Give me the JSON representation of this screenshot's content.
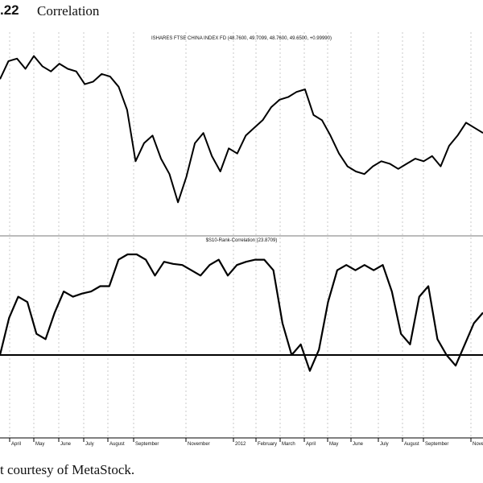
{
  "figure": {
    "number": ".22",
    "title": "Correlation",
    "caption": "t courtesy of MetaStock."
  },
  "chart_data": [
    {
      "type": "line",
      "title": "ISHARES FTSE CHINA INDEX FD (48.7600, 49.7099, 48.7600, 49.6500, +0.99990)",
      "series": [
        {
          "values": [
            44.0,
            47.5,
            48.0,
            46.0,
            48.5,
            46.5,
            45.5,
            47.0,
            46.0,
            45.5,
            43.0,
            43.5,
            45.0,
            44.5,
            42.5,
            38.0,
            28.0,
            31.5,
            33.0,
            28.5,
            25.5,
            20.0,
            25.0,
            31.5,
            33.5,
            29.0,
            26.0,
            30.5,
            29.5,
            33.0,
            34.5,
            36.0,
            38.5,
            40.0,
            40.5,
            41.5,
            42.0,
            37.0,
            36.0,
            33.0,
            29.5,
            27.0,
            26.0,
            25.5,
            27.0,
            28.0,
            27.5,
            26.5,
            27.5,
            28.5,
            28.0,
            29.0,
            27.0,
            31.0,
            33.0,
            35.5,
            34.5,
            33.5
          ]
        }
      ]
    },
    {
      "type": "line",
      "title": "$S10-Rank-Correlation (23.8709)",
      "x_tick_labels": [
        "April",
        "May",
        "June",
        "July",
        "August",
        "September",
        "November",
        "2012",
        "February",
        "March",
        "April",
        "May",
        "June",
        "July",
        "August",
        "September",
        "Novem"
      ],
      "reference_line": 0,
      "ylim": [
        -60,
        100
      ],
      "series": [
        {
          "values": [
            0,
            35,
            55,
            50,
            20,
            15,
            40,
            60,
            55,
            58,
            60,
            65,
            65,
            90,
            95,
            95,
            90,
            75,
            88,
            86,
            85,
            80,
            75,
            85,
            90,
            75,
            85,
            88,
            90,
            90,
            80,
            30,
            0,
            10,
            -15,
            5,
            50,
            80,
            85,
            80,
            85,
            80,
            85,
            60,
            20,
            10,
            55,
            65,
            15,
            0,
            -10,
            10,
            30,
            40
          ]
        }
      ]
    }
  ]
}
